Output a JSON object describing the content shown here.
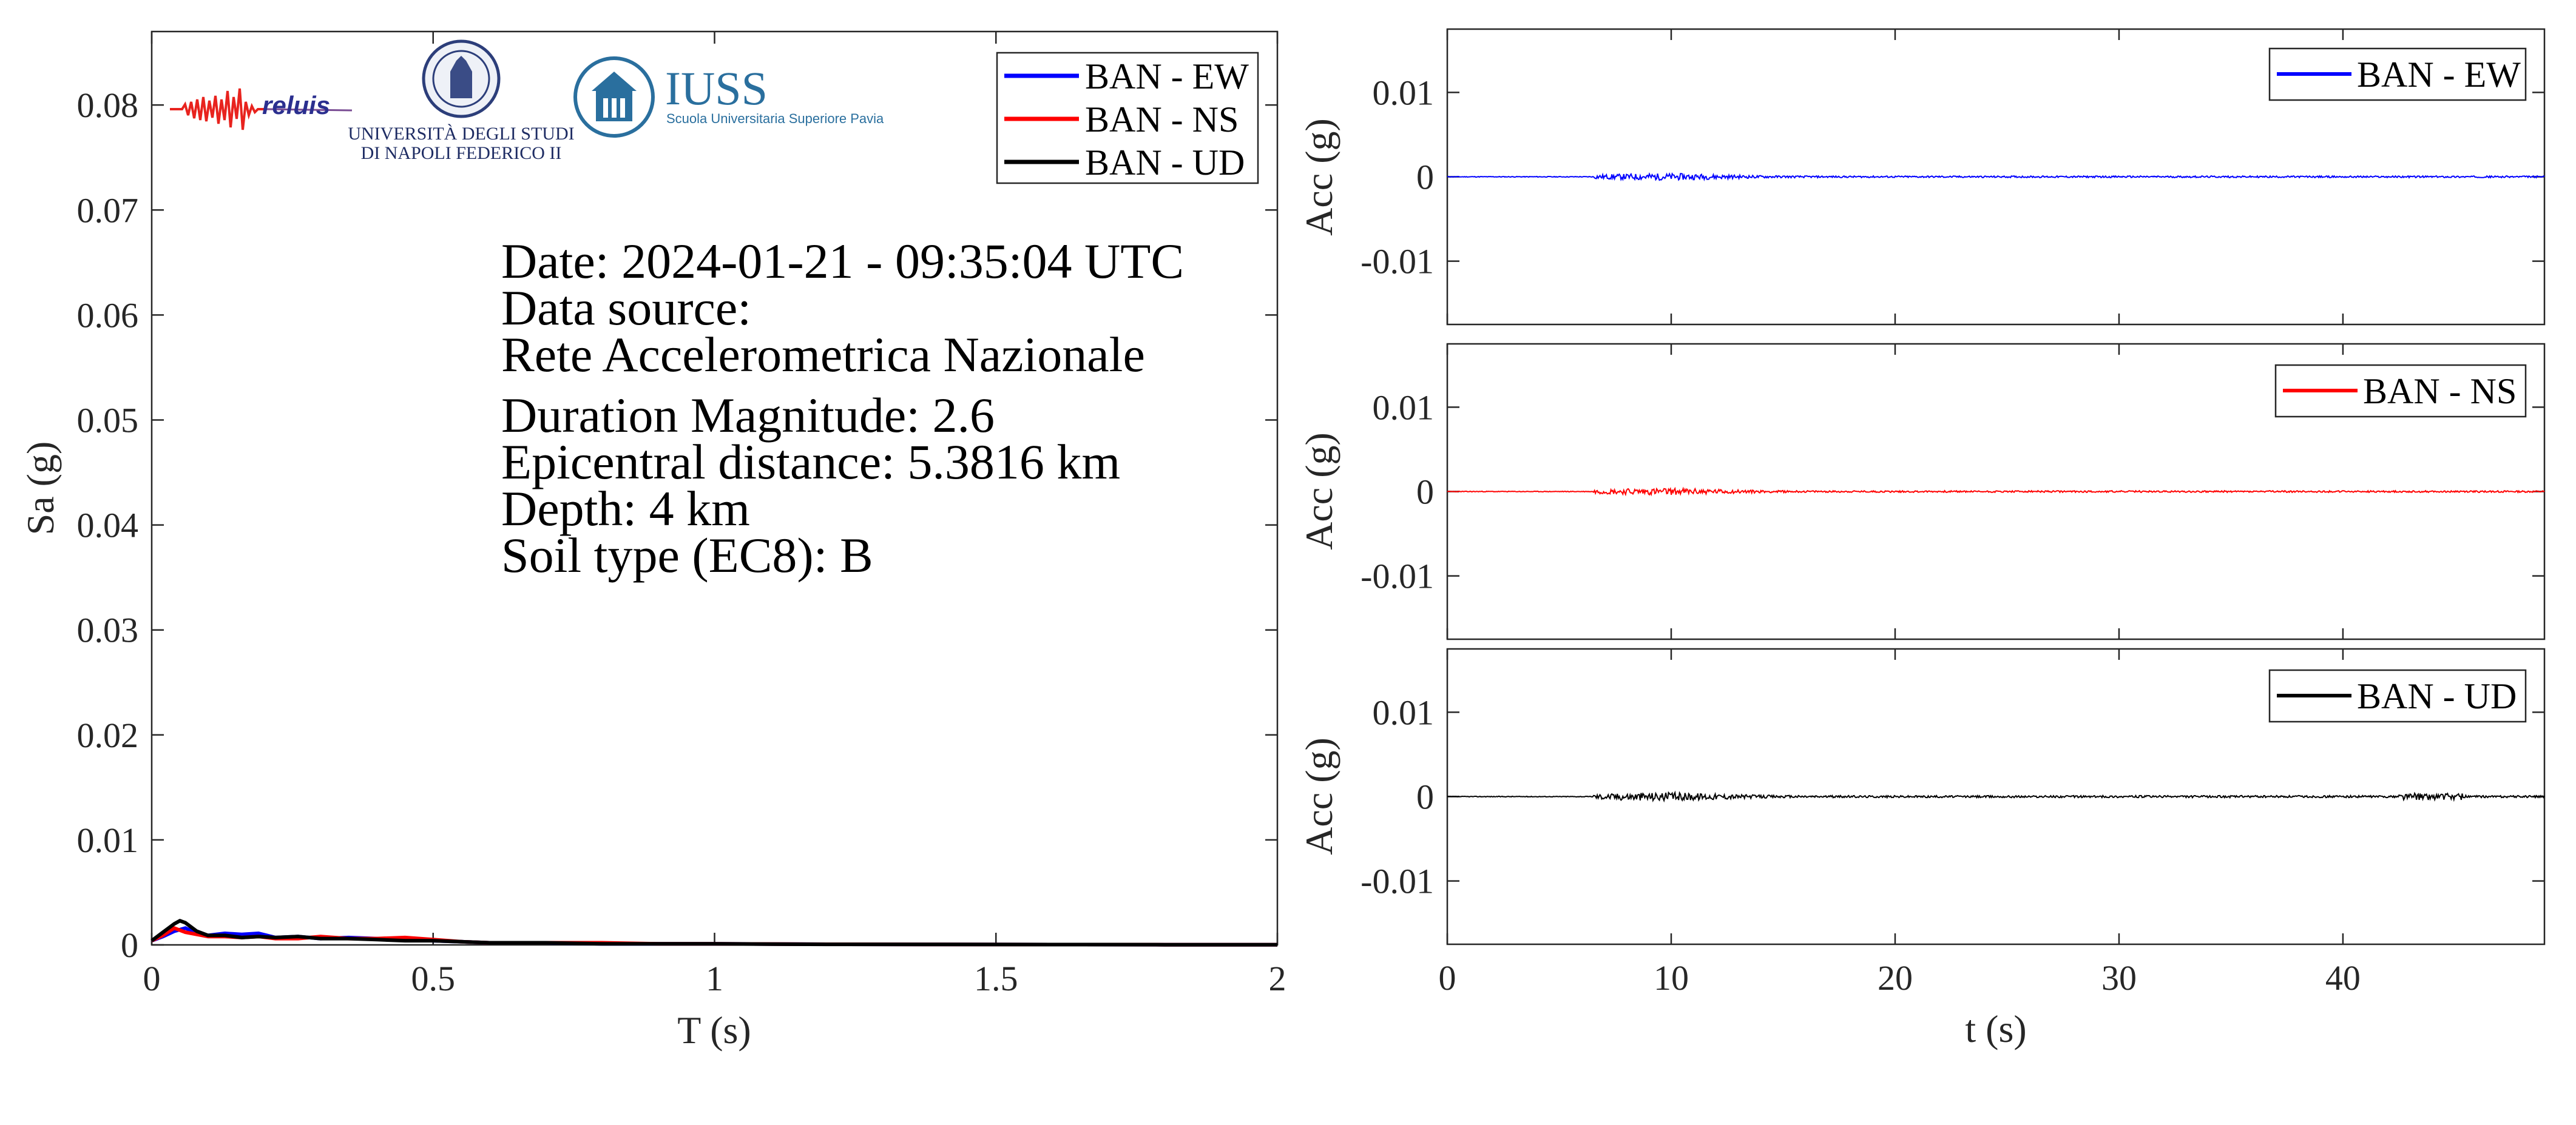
{
  "colors": {
    "ew": "#0000ff",
    "ns": "#ff0000",
    "ud": "#000000"
  },
  "logos": {
    "reluis": "reluis",
    "unina_line1": "UNIVERSITÀ DEGLI STUDI",
    "unina_line2": "DI NAPOLI FEDERICO II",
    "iuss_title": "IUSS",
    "iuss_sub": "Scuola Universitaria Superiore Pavia"
  },
  "annotation": {
    "date": "Date: 2024-01-21 - 09:35:04 UTC",
    "source_label": "Data source:",
    "source": "Rete Accelerometrica Nazionale",
    "magnitude": "Duration Magnitude: 2.6",
    "distance": "Epicentral distance: 5.3816 km",
    "depth": "Depth: 4 km",
    "soil": "Soil type (EC8): B"
  },
  "chart_data": [
    {
      "type": "line",
      "title": "",
      "xlabel": "T (s)",
      "ylabel": "Sa (g)",
      "xlim": [
        0,
        2
      ],
      "ylim": [
        0,
        0.087
      ],
      "xticks": [
        0,
        0.5,
        1,
        1.5,
        2
      ],
      "xtick_labels": [
        "0",
        "0.5",
        "1",
        "1.5",
        "2"
      ],
      "yticks": [
        0,
        0.01,
        0.02,
        0.03,
        0.04,
        0.05,
        0.06,
        0.07,
        0.08
      ],
      "ytick_labels": [
        "0",
        "0.01",
        "0.02",
        "0.03",
        "0.04",
        "0.05",
        "0.06",
        "0.07",
        "0.08"
      ],
      "legend_position": "top-right",
      "grid": false,
      "series": [
        {
          "name": "BAN - EW",
          "color": "#0000ff",
          "x": [
            0,
            0.02,
            0.04,
            0.06,
            0.08,
            0.1,
            0.13,
            0.16,
            0.19,
            0.22,
            0.26,
            0.3,
            0.35,
            0.4,
            0.45,
            0.5,
            0.55,
            0.6,
            0.7,
            0.8,
            0.9,
            1,
            1.2,
            1.4,
            1.6,
            1.8,
            2
          ],
          "y": [
            0.0004,
            0.0008,
            0.0013,
            0.0016,
            0.0011,
            0.0009,
            0.0011,
            0.001,
            0.0011,
            0.0007,
            0.0008,
            0.0006,
            0.0007,
            0.0006,
            0.0005,
            0.0004,
            0.0003,
            0.0002,
            0.0002,
            0.0001,
            0.0001,
            0.0001,
            6e-05,
            4e-05,
            3e-05,
            2e-05,
            2e-05
          ]
        },
        {
          "name": "BAN - NS",
          "color": "#ff0000",
          "x": [
            0,
            0.02,
            0.04,
            0.06,
            0.08,
            0.1,
            0.13,
            0.16,
            0.19,
            0.22,
            0.26,
            0.3,
            0.35,
            0.4,
            0.45,
            0.5,
            0.55,
            0.6,
            0.7,
            0.8,
            0.9,
            1,
            1.2,
            1.4,
            1.6,
            1.8,
            2
          ],
          "y": [
            0.0004,
            0.0009,
            0.0016,
            0.0012,
            0.001,
            0.0008,
            0.0008,
            0.0007,
            0.0008,
            0.0006,
            0.0006,
            0.0008,
            0.0006,
            0.0006,
            0.0007,
            0.0005,
            0.0003,
            0.0002,
            0.0002,
            0.0002,
            0.0001,
            0.0001,
            6e-05,
            4e-05,
            3e-05,
            2e-05,
            2e-05
          ]
        },
        {
          "name": "BAN - UD",
          "color": "#000000",
          "x": [
            0,
            0.02,
            0.04,
            0.05,
            0.06,
            0.08,
            0.1,
            0.13,
            0.16,
            0.19,
            0.22,
            0.26,
            0.3,
            0.35,
            0.4,
            0.45,
            0.5,
            0.55,
            0.6,
            0.7,
            0.8,
            0.9,
            1,
            1.2,
            1.4,
            1.6,
            1.8,
            2
          ],
          "y": [
            0.0004,
            0.0012,
            0.002,
            0.0023,
            0.0021,
            0.0013,
            0.0009,
            0.0009,
            0.0007,
            0.0008,
            0.0007,
            0.0008,
            0.0006,
            0.0006,
            0.0005,
            0.0004,
            0.0004,
            0.0003,
            0.0002,
            0.0002,
            0.0001,
            0.0001,
            0.0001,
            5e-05,
            4e-05,
            3e-05,
            2e-05,
            2e-05
          ]
        }
      ]
    },
    {
      "type": "line",
      "title": "",
      "xlabel": "",
      "ylabel": "Acc (g)",
      "xlim": [
        0,
        49
      ],
      "ylim": [
        -0.0175,
        0.0175
      ],
      "yticks": [
        -0.01,
        0,
        0.01
      ],
      "ytick_labels": [
        "-0.01",
        "0",
        "0.01"
      ],
      "legend_position": "top-right",
      "series": [
        {
          "name": "BAN - EW",
          "color": "#0000ff",
          "signal_start": 6.5,
          "peak": 0.0004
        }
      ]
    },
    {
      "type": "line",
      "title": "",
      "xlabel": "",
      "ylabel": "Acc (g)",
      "xlim": [
        0,
        49
      ],
      "ylim": [
        -0.0175,
        0.0175
      ],
      "yticks": [
        -0.01,
        0,
        0.01
      ],
      "ytick_labels": [
        "-0.01",
        "0",
        "0.01"
      ],
      "legend_position": "top-right",
      "series": [
        {
          "name": "BAN - NS",
          "color": "#ff0000",
          "signal_start": 6.5,
          "peak": 0.0004
        }
      ]
    },
    {
      "type": "line",
      "title": "",
      "xlabel": "t (s)",
      "ylabel": "Acc (g)",
      "xlim": [
        0,
        49
      ],
      "ylim": [
        -0.0175,
        0.0175
      ],
      "xticks": [
        0,
        10,
        20,
        30,
        40
      ],
      "xtick_labels": [
        "0",
        "10",
        "20",
        "30",
        "40"
      ],
      "yticks": [
        -0.01,
        0,
        0.01
      ],
      "ytick_labels": [
        "-0.01",
        "0",
        "0.01"
      ],
      "legend_position": "top-right",
      "series": [
        {
          "name": "BAN - UD",
          "color": "#000000",
          "signal_start": 6.5,
          "peak": 0.0005
        }
      ]
    }
  ]
}
